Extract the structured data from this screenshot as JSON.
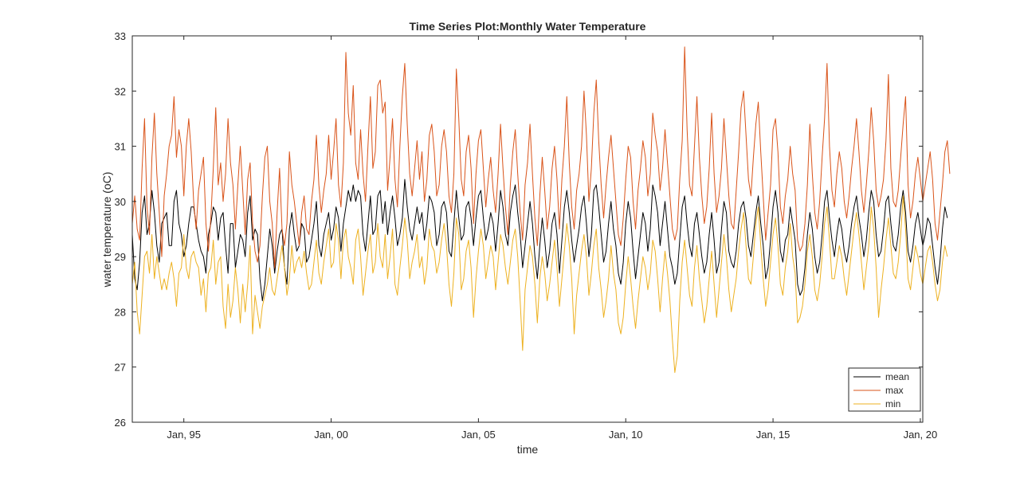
{
  "chart_data": {
    "type": "line",
    "title": "Time Series Plot:Monthly Water Temperature",
    "xlabel": "time",
    "ylabel": "water temperature (oC)",
    "x_axis": "date",
    "x_start": "1993-04",
    "x_end": "2020-01",
    "xlim": [
      "1993-04",
      "2020-02"
    ],
    "ylim": [
      26,
      33
    ],
    "y_ticks": [
      26,
      27,
      28,
      29,
      30,
      31,
      32,
      33
    ],
    "x_ticks": [
      {
        "date": "1995-01",
        "label": "Jan, 95"
      },
      {
        "date": "2000-01",
        "label": "Jan, 00"
      },
      {
        "date": "2005-01",
        "label": "Jan, 05"
      },
      {
        "date": "2010-01",
        "label": "Jan, 10"
      },
      {
        "date": "2015-01",
        "label": "Jan, 15"
      },
      {
        "date": "2020-01",
        "label": "Jan, 20"
      }
    ],
    "grid": false,
    "legend_position": "bottom-right",
    "series": [
      {
        "name": "mean",
        "color": "#000000",
        "values": [
          29.4,
          28.6,
          28.4,
          28.9,
          29.8,
          30.1,
          29.4,
          29.6,
          30.2,
          29.8,
          29.2,
          28.9,
          29.6,
          29.7,
          29.8,
          29.2,
          29.2,
          30.0,
          30.2,
          29.6,
          29.4,
          29.0,
          29.2,
          29.6,
          29.9,
          29.9,
          29.6,
          29.3,
          29.1,
          29.0,
          28.7,
          29.4,
          29.6,
          29.9,
          29.8,
          29.3,
          29.7,
          29.8,
          29.2,
          28.7,
          29.6,
          29.6,
          28.8,
          29.1,
          29.4,
          29.3,
          29.0,
          29.8,
          30.1,
          29.3,
          29.5,
          29.4,
          28.6,
          28.2,
          28.5,
          29.0,
          29.5,
          29.2,
          28.7,
          29.1,
          29.4,
          29.5,
          28.8,
          28.5,
          29.5,
          29.8,
          29.4,
          29.1,
          29.2,
          29.6,
          29.5,
          28.9,
          29.0,
          29.3,
          29.6,
          30.0,
          29.2,
          29.0,
          29.4,
          29.6,
          29.8,
          29.3,
          29.5,
          29.9,
          29.7,
          29.1,
          29.6,
          29.9,
          30.2,
          30.0,
          30.3,
          30.0,
          30.2,
          30.1,
          29.4,
          29.1,
          29.6,
          30.1,
          29.4,
          29.5,
          30.1,
          30.2,
          29.6,
          30.0,
          29.4,
          29.8,
          30.1,
          29.7,
          29.2,
          29.4,
          29.7,
          30.4,
          29.9,
          29.5,
          29.3,
          29.6,
          29.9,
          29.6,
          29.8,
          29.3,
          29.6,
          30.1,
          30.0,
          29.8,
          29.2,
          29.4,
          29.9,
          30.0,
          29.8,
          29.1,
          29.0,
          29.6,
          30.2,
          29.7,
          29.3,
          29.4,
          29.9,
          30.0,
          29.7,
          29.2,
          29.7,
          30.1,
          30.2,
          29.7,
          29.3,
          29.5,
          29.8,
          29.6,
          29.1,
          29.6,
          30.2,
          29.9,
          29.4,
          29.2,
          29.8,
          30.1,
          30.3,
          29.8,
          29.4,
          28.8,
          29.2,
          29.6,
          30.0,
          29.6,
          29.0,
          28.6,
          29.2,
          29.7,
          29.3,
          28.8,
          29.1,
          29.6,
          29.8,
          29.4,
          28.7,
          29.3,
          29.9,
          30.2,
          29.8,
          29.3,
          28.9,
          29.2,
          29.5,
          29.9,
          30.1,
          29.6,
          29.0,
          29.4,
          30.2,
          30.3,
          29.9,
          29.4,
          28.9,
          29.1,
          29.6,
          30.0,
          29.5,
          29.2,
          28.7,
          28.5,
          28.9,
          29.6,
          30.0,
          29.7,
          29.1,
          28.6,
          29.0,
          29.4,
          29.8,
          29.6,
          29.1,
          29.5,
          30.3,
          30.1,
          29.8,
          29.2,
          29.6,
          30.0,
          29.5,
          29.0,
          28.8,
          28.5,
          28.7,
          29.3,
          29.9,
          30.1,
          29.6,
          29.2,
          29.0,
          29.6,
          29.8,
          29.4,
          29.0,
          28.7,
          28.9,
          29.4,
          29.8,
          29.3,
          28.7,
          28.9,
          29.5,
          30.0,
          29.8,
          29.1,
          28.9,
          28.8,
          29.1,
          29.6,
          29.9,
          30.0,
          29.7,
          29.2,
          29.0,
          29.4,
          29.8,
          30.1,
          29.6,
          29.2,
          28.6,
          28.8,
          29.3,
          29.9,
          30.2,
          29.8,
          29.1,
          28.9,
          29.3,
          29.4,
          29.9,
          29.6,
          29.3,
          28.5,
          28.3,
          28.4,
          28.8,
          29.4,
          29.8,
          29.5,
          29.0,
          28.7,
          28.9,
          29.4,
          30.0,
          30.2,
          29.7,
          29.3,
          29.0,
          29.4,
          29.7,
          29.5,
          29.1,
          28.9,
          29.2,
          29.6,
          29.9,
          30.1,
          29.7,
          29.4,
          29.0,
          29.3,
          29.8,
          30.2,
          30.0,
          29.4,
          29.0,
          29.1,
          29.5,
          30.0,
          30.1,
          29.6,
          29.2,
          29.1,
          29.4,
          29.9,
          30.2,
          29.8,
          29.1,
          28.9,
          29.2,
          29.6,
          29.8,
          29.5,
          29.2,
          29.4,
          29.7,
          29.6,
          29.2,
          28.8,
          28.5,
          28.9,
          29.5,
          29.9,
          29.7
        ],
        "values_note": "monthly mean series, Apr 1993 - Jan 2020"
      },
      {
        "name": "max",
        "color": "#D95319",
        "values": [
          29.6,
          30.1,
          29.5,
          29.3,
          30.6,
          31.5,
          29.9,
          29.4,
          30.8,
          31.6,
          30.5,
          29.8,
          29.0,
          30.1,
          30.5,
          31.0,
          31.2,
          31.9,
          30.8,
          31.3,
          31.0,
          30.1,
          31.0,
          31.5,
          30.9,
          30.0,
          29.5,
          30.2,
          30.5,
          30.8,
          29.6,
          29.1,
          29.7,
          30.6,
          31.7,
          30.3,
          30.7,
          30.0,
          30.5,
          31.5,
          30.7,
          30.3,
          29.5,
          30.3,
          31.0,
          30.2,
          29.4,
          30.4,
          30.7,
          29.6,
          29.1,
          28.9,
          29.2,
          30.1,
          30.8,
          31.0,
          30.0,
          29.6,
          28.8,
          29.8,
          30.6,
          29.5,
          29.2,
          29.6,
          30.9,
          30.3,
          30.0,
          29.6,
          29.2,
          29.8,
          30.1,
          29.5,
          29.4,
          30.0,
          30.4,
          31.2,
          30.3,
          29.8,
          30.2,
          30.5,
          31.2,
          30.4,
          30.9,
          31.5,
          30.3,
          29.9,
          30.7,
          32.7,
          31.6,
          31.2,
          32.1,
          30.7,
          30.4,
          31.3,
          30.5,
          30.0,
          31.0,
          31.9,
          30.6,
          30.9,
          32.1,
          32.2,
          31.6,
          31.8,
          30.2,
          30.8,
          31.5,
          30.4,
          29.9,
          31.0,
          31.9,
          32.5,
          31.4,
          30.5,
          30.1,
          30.6,
          31.1,
          30.4,
          30.9,
          30.0,
          30.4,
          31.2,
          31.4,
          30.9,
          30.1,
          30.3,
          31.0,
          31.3,
          30.9,
          30.1,
          29.8,
          30.5,
          32.4,
          31.5,
          30.4,
          30.1,
          30.9,
          31.2,
          30.6,
          29.6,
          30.5,
          31.1,
          31.3,
          30.6,
          29.9,
          30.4,
          30.8,
          30.2,
          29.8,
          30.5,
          31.4,
          30.6,
          29.9,
          29.4,
          30.3,
          30.9,
          31.3,
          30.5,
          29.8,
          29.3,
          30.3,
          30.7,
          31.4,
          30.5,
          29.7,
          29.2,
          30.1,
          30.8,
          30.2,
          29.5,
          29.9,
          30.6,
          31.0,
          30.4,
          29.5,
          30.4,
          31.0,
          31.9,
          30.7,
          29.9,
          29.5,
          30.2,
          30.5,
          31.0,
          32.0,
          31.2,
          30.0,
          30.6,
          31.6,
          32.2,
          31.1,
          30.3,
          29.7,
          30.3,
          30.8,
          31.2,
          30.6,
          30.0,
          29.4,
          29.2,
          29.7,
          30.4,
          31.0,
          30.8,
          30.0,
          29.5,
          30.2,
          30.6,
          31.1,
          30.8,
          30.1,
          30.5,
          31.6,
          31.2,
          30.9,
          30.2,
          30.6,
          31.3,
          30.7,
          30.1,
          29.5,
          29.3,
          29.5,
          30.4,
          31.1,
          32.8,
          31.3,
          30.3,
          30.1,
          31.0,
          31.9,
          30.8,
          30.1,
          29.6,
          29.9,
          30.6,
          31.6,
          30.5,
          29.8,
          30.1,
          30.6,
          31.5,
          30.8,
          30.1,
          29.6,
          29.5,
          30.2,
          30.9,
          31.7,
          32.0,
          31.2,
          30.4,
          30.1,
          30.8,
          31.4,
          31.8,
          30.9,
          30.1,
          29.3,
          29.8,
          30.3,
          31.3,
          31.5,
          30.9,
          29.9,
          29.6,
          30.1,
          30.4,
          31.0,
          30.5,
          30.2,
          29.3,
          29.1,
          29.2,
          29.6,
          30.3,
          31.4,
          30.5,
          29.8,
          29.5,
          30.0,
          30.8,
          31.5,
          32.5,
          31.0,
          30.2,
          29.9,
          30.5,
          30.9,
          30.6,
          30.0,
          29.7,
          30.1,
          30.6,
          31.0,
          31.5,
          30.9,
          30.2,
          29.8,
          30.3,
          30.9,
          31.7,
          31.1,
          30.2,
          29.9,
          30.1,
          30.4,
          31.1,
          32.3,
          30.6,
          30.0,
          29.9,
          30.2,
          30.8,
          31.4,
          31.9,
          30.3,
          29.7,
          30.0,
          30.5,
          30.8,
          30.4,
          30.0,
          30.3,
          30.6,
          30.9,
          30.4,
          29.6,
          29.3,
          29.8,
          30.3,
          30.9,
          31.1,
          30.5
        ]
      },
      {
        "name": "min",
        "color": "#EDB120",
        "values": [
          28.5,
          28.9,
          28.0,
          27.6,
          28.3,
          29.0,
          29.1,
          28.7,
          29.4,
          28.6,
          29.0,
          28.7,
          28.4,
          28.6,
          28.4,
          28.7,
          28.9,
          28.6,
          28.1,
          28.7,
          28.8,
          29.4,
          28.8,
          28.6,
          29.0,
          29.1,
          28.9,
          28.8,
          28.3,
          28.6,
          28.0,
          28.7,
          28.8,
          29.3,
          28.5,
          28.9,
          29.0,
          28.1,
          27.7,
          28.5,
          27.9,
          28.2,
          28.8,
          28.4,
          27.8,
          28.5,
          28.0,
          28.5,
          29.2,
          27.6,
          28.3,
          28.0,
          27.7,
          28.1,
          28.3,
          28.5,
          28.8,
          28.4,
          28.3,
          28.6,
          28.9,
          29.2,
          28.8,
          28.3,
          28.6,
          29.2,
          28.7,
          28.9,
          29.0,
          28.8,
          29.1,
          28.7,
          28.4,
          28.5,
          28.9,
          29.3,
          28.7,
          28.5,
          28.9,
          29.2,
          29.5,
          28.8,
          28.9,
          29.6,
          29.3,
          28.6,
          29.3,
          29.5,
          29.0,
          28.8,
          28.5,
          29.3,
          29.5,
          29.0,
          28.3,
          28.7,
          29.1,
          29.4,
          28.7,
          28.9,
          29.6,
          29.0,
          28.8,
          29.4,
          28.6,
          29.0,
          29.5,
          28.5,
          28.3,
          28.8,
          29.2,
          29.7,
          29.3,
          28.6,
          28.9,
          29.1,
          29.4,
          28.8,
          29.0,
          28.5,
          28.8,
          29.5,
          29.2,
          29.1,
          28.7,
          28.9,
          29.3,
          29.6,
          29.2,
          28.5,
          28.1,
          28.7,
          29.7,
          29.4,
          28.4,
          28.6,
          29.1,
          29.3,
          28.8,
          27.9,
          28.6,
          29.1,
          29.5,
          29.2,
          28.6,
          28.9,
          29.2,
          29.0,
          28.4,
          28.9,
          29.4,
          29.2,
          28.8,
          28.5,
          28.9,
          29.3,
          29.5,
          29.0,
          28.2,
          27.3,
          28.4,
          28.8,
          29.2,
          29.0,
          28.5,
          27.8,
          28.6,
          29.0,
          28.7,
          28.2,
          28.5,
          28.9,
          29.3,
          28.8,
          28.1,
          28.6,
          29.1,
          29.6,
          29.2,
          28.6,
          27.6,
          28.3,
          28.7,
          29.1,
          29.4,
          29.0,
          28.3,
          28.7,
          29.2,
          29.5,
          28.8,
          28.4,
          27.9,
          28.2,
          28.6,
          29.2,
          28.7,
          28.4,
          27.8,
          27.6,
          27.9,
          28.5,
          29.0,
          28.6,
          28.1,
          27.7,
          28.2,
          28.6,
          29.0,
          28.8,
          28.4,
          28.7,
          29.3,
          29.1,
          28.6,
          28.0,
          28.6,
          29.1,
          28.7,
          28.2,
          27.5,
          26.9,
          27.2,
          28.2,
          28.9,
          29.3,
          28.8,
          28.3,
          28.1,
          28.8,
          29.2,
          28.6,
          28.2,
          27.8,
          28.1,
          28.6,
          29.1,
          28.5,
          27.9,
          28.4,
          28.9,
          29.4,
          29.0,
          28.4,
          28.0,
          28.3,
          28.6,
          29.1,
          29.5,
          29.8,
          29.2,
          28.6,
          28.5,
          29.0,
          29.6,
          29.9,
          29.2,
          28.6,
          28.1,
          28.4,
          28.9,
          29.4,
          29.7,
          29.2,
          28.5,
          28.3,
          28.8,
          29.1,
          29.6,
          29.0,
          28.7,
          27.8,
          27.9,
          28.1,
          28.5,
          29.1,
          29.4,
          29.0,
          28.4,
          28.2,
          28.5,
          29.0,
          29.6,
          29.9,
          29.3,
          28.6,
          28.6,
          28.9,
          29.2,
          29.0,
          28.6,
          28.3,
          28.7,
          29.1,
          29.5,
          29.8,
          29.4,
          28.9,
          28.4,
          28.8,
          29.2,
          29.9,
          29.5,
          28.8,
          27.9,
          28.4,
          28.8,
          29.3,
          29.7,
          29.2,
          28.7,
          28.6,
          28.9,
          29.4,
          30.1,
          29.5,
          28.6,
          28.4,
          28.8,
          29.2,
          29.0,
          28.7,
          28.5,
          28.8,
          29.1,
          29.2,
          28.9,
          28.5,
          28.2,
          28.4,
          28.9,
          29.2,
          29.0
        ]
      }
    ]
  }
}
